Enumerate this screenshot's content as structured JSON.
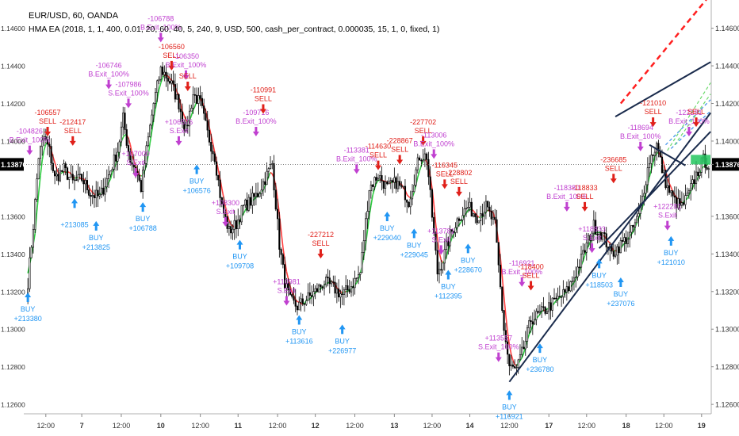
{
  "header": {
    "symbol_line": "EUR/USD, 60, OANDA",
    "strategy_line": "HMA EA (2018, 1, 1, 400, 0.01, 20, 60, 40, 5, 240, 9, USD, 500, cash_per_contract, 0.000035, 15, 1, 0, fixed, 1)"
  },
  "colors": {
    "bull": "#ffffff",
    "bear": "#000000",
    "hma_up": "#2ecc40",
    "hma_down": "#ff4040",
    "buy": "#2196f3",
    "sell": "#e0201a",
    "exit": "#c040d0",
    "trend": "#1a2b4c",
    "proj_red": "#ff2020",
    "proj_blue": "#3b8eea",
    "proj_green": "#6ad96a",
    "price_tag": "#000000"
  },
  "chart_data": {
    "type": "candlestick",
    "symbol": "EUR/USD",
    "timeframe": "60",
    "ylim": [
      1.1255,
      1.1475
    ],
    "y_ticks": [
      "1.14600",
      "1.14400",
      "1.14200",
      "1.14000",
      "1.13876",
      "1.13600",
      "1.13400",
      "1.13200",
      "1.13000",
      "1.12800",
      "1.12600"
    ],
    "y_tick_values": [
      1.146,
      1.144,
      1.142,
      1.14,
      1.13876,
      1.136,
      1.134,
      1.132,
      1.13,
      1.128,
      1.126
    ],
    "current_price": "1.13876",
    "current_price_value": 1.13876,
    "x_ticks": [
      "12:00",
      "7",
      "12:00",
      "10",
      "12:00",
      "11",
      "12:00",
      "12",
      "12:00",
      "13",
      "12:00",
      "14",
      "12:00",
      "17",
      "12:00",
      "18",
      "12:00",
      "19"
    ],
    "x_tick_index": [
      10,
      30,
      52,
      74,
      96,
      117,
      139,
      160,
      182,
      204,
      225,
      246,
      268,
      290,
      311,
      333,
      354,
      375
    ],
    "candle_count": 380,
    "path_anchors": [
      [
        0,
        1.1325
      ],
      [
        3,
        1.1355
      ],
      [
        6,
        1.1392
      ],
      [
        9,
        1.1402
      ],
      [
        12,
        1.1395
      ],
      [
        15,
        1.138
      ],
      [
        20,
        1.1385
      ],
      [
        25,
        1.1378
      ],
      [
        30,
        1.138
      ],
      [
        35,
        1.1372
      ],
      [
        40,
        1.137
      ],
      [
        45,
        1.1382
      ],
      [
        50,
        1.1395
      ],
      [
        53,
        1.1412
      ],
      [
        55,
        1.14
      ],
      [
        57,
        1.139
      ],
      [
        60,
        1.1385
      ],
      [
        63,
        1.1375
      ],
      [
        66,
        1.1395
      ],
      [
        70,
        1.142
      ],
      [
        74,
        1.1438
      ],
      [
        76,
        1.1436
      ],
      [
        80,
        1.143
      ],
      [
        84,
        1.142
      ],
      [
        88,
        1.1405
      ],
      [
        92,
        1.1425
      ],
      [
        96,
        1.142
      ],
      [
        100,
        1.1404
      ],
      [
        104,
        1.1392
      ],
      [
        108,
        1.1365
      ],
      [
        112,
        1.1352
      ],
      [
        116,
        1.1356
      ],
      [
        120,
        1.1365
      ],
      [
        124,
        1.1368
      ],
      [
        128,
        1.1372
      ],
      [
        132,
        1.138
      ],
      [
        136,
        1.1388
      ],
      [
        140,
        1.1345
      ],
      [
        143,
        1.1325
      ],
      [
        146,
        1.1315
      ],
      [
        150,
        1.1312
      ],
      [
        154,
        1.1315
      ],
      [
        160,
        1.132
      ],
      [
        165,
        1.1325
      ],
      [
        170,
        1.1322
      ],
      [
        175,
        1.1318
      ],
      [
        180,
        1.1323
      ],
      [
        185,
        1.133
      ],
      [
        190,
        1.1375
      ],
      [
        195,
        1.1382
      ],
      [
        200,
        1.1375
      ],
      [
        205,
        1.1378
      ],
      [
        210,
        1.1372
      ],
      [
        212,
        1.1368
      ],
      [
        215,
        1.138
      ],
      [
        218,
        1.1392
      ],
      [
        222,
        1.1392
      ],
      [
        225,
        1.136
      ],
      [
        228,
        1.133
      ],
      [
        231,
        1.1337
      ],
      [
        235,
        1.135
      ],
      [
        240,
        1.136
      ],
      [
        245,
        1.1365
      ],
      [
        250,
        1.136
      ],
      [
        255,
        1.1365
      ],
      [
        260,
        1.1355
      ],
      [
        265,
        1.13
      ],
      [
        268,
        1.128
      ],
      [
        272,
        1.1278
      ],
      [
        276,
        1.129
      ],
      [
        280,
        1.1305
      ],
      [
        285,
        1.1308
      ],
      [
        290,
        1.1312
      ],
      [
        295,
        1.1316
      ],
      [
        300,
        1.132
      ],
      [
        305,
        1.133
      ],
      [
        310,
        1.1342
      ],
      [
        315,
        1.1355
      ],
      [
        320,
        1.135
      ],
      [
        325,
        1.134
      ],
      [
        330,
        1.1345
      ],
      [
        335,
        1.135
      ],
      [
        340,
        1.136
      ],
      [
        343,
        1.1375
      ],
      [
        346,
        1.139
      ],
      [
        350,
        1.1398
      ],
      [
        353,
        1.1385
      ],
      [
        356,
        1.1375
      ],
      [
        360,
        1.1368
      ],
      [
        364,
        1.1365
      ],
      [
        368,
        1.1372
      ],
      [
        372,
        1.1382
      ],
      [
        376,
        1.139
      ],
      [
        379,
        1.1387
      ]
    ],
    "trendlines": [
      {
        "color": "trend",
        "from": [
          268,
          1.1272
        ],
        "to": [
          380,
          1.1415
        ]
      },
      {
        "color": "trend",
        "from": [
          318,
          1.1343
        ],
        "to": [
          380,
          1.1405
        ]
      },
      {
        "color": "trend",
        "from": [
          327,
          1.1413
        ],
        "to": [
          380,
          1.1442
        ]
      },
      {
        "color": "trend",
        "from": [
          346,
          1.1398
        ],
        "to": [
          366,
          1.1387
        ]
      }
    ],
    "projection_lines": [
      {
        "color": "proj_red",
        "from": [
          330,
          1.142
        ],
        "to": [
          380,
          1.1478
        ],
        "dashed": true
      },
      {
        "color": "proj_blue",
        "from": [
          355,
          1.1398
        ],
        "to": [
          380,
          1.1422
        ],
        "dashed": true
      },
      {
        "color": "proj_blue",
        "from": [
          358,
          1.1396
        ],
        "to": [
          380,
          1.1416
        ],
        "dashed": true
      },
      {
        "color": "proj_green",
        "from": [
          356,
          1.1395
        ],
        "to": [
          380,
          1.1431
        ],
        "dashed": true
      },
      {
        "color": "proj_green",
        "from": [
          360,
          1.1398
        ],
        "to": [
          380,
          1.1425
        ],
        "dashed": true
      }
    ],
    "signals": [
      {
        "i": 0,
        "type": "buy",
        "label": "BUY",
        "value": "+213380",
        "price": 1.1322
      },
      {
        "i": 1,
        "type": "exit",
        "label": "B.Exit_100%",
        "value": "-104826",
        "price": 1.139
      },
      {
        "i": 11,
        "type": "sell",
        "label": "SELL",
        "value": "-106557",
        "price": 1.14
      },
      {
        "i": 25,
        "type": "sell",
        "label": "SELL",
        "value": "-212417",
        "price": 1.1395
      },
      {
        "i": 26,
        "type": "buy",
        "label": "",
        "value": "+213085",
        "price": 1.1372
      },
      {
        "i": 38,
        "type": "buy",
        "label": "BUY",
        "value": "+213825",
        "price": 1.136
      },
      {
        "i": 45,
        "type": "exit",
        "label": "B.Exit_100%",
        "value": "-106746",
        "price": 1.1425
      },
      {
        "i": 56,
        "type": "exit",
        "label": "S.Exit_100%",
        "value": "-107986",
        "price": 1.1415
      },
      {
        "i": 60,
        "type": "exit",
        "label": "S.Exit",
        "value": "+107000",
        "price": 1.1378
      },
      {
        "i": 64,
        "type": "buy",
        "label": "BUY",
        "value": "+106788",
        "price": 1.137
      },
      {
        "i": 74,
        "type": "exit",
        "label": "B.Exit_100%",
        "value": "-106788",
        "price": 1.145
      },
      {
        "i": 80,
        "type": "sell",
        "label": "SELL",
        "value": "-106560",
        "price": 1.1435
      },
      {
        "i": 84,
        "type": "exit",
        "label": "S.Exit",
        "value": "+106576",
        "price": 1.1395
      },
      {
        "i": 88,
        "type": "exit",
        "label": "B.Exit_100%",
        "value": "-106350",
        "price": 1.143
      },
      {
        "i": 89,
        "type": "sell",
        "label": "SELL",
        "value": "",
        "price": 1.1424
      },
      {
        "i": 94,
        "type": "buy",
        "label": "BUY",
        "value": "+106576",
        "price": 1.139
      },
      {
        "i": 110,
        "type": "exit",
        "label": "S.Exit",
        "value": "+108300",
        "price": 1.1352
      },
      {
        "i": 118,
        "type": "buy",
        "label": "BUY",
        "value": "+109708",
        "price": 1.135
      },
      {
        "i": 127,
        "type": "exit",
        "label": "B.Exit_100%",
        "value": "-109716",
        "price": 1.14
      },
      {
        "i": 131,
        "type": "sell",
        "label": "SELL",
        "value": "-110991",
        "price": 1.1412
      },
      {
        "i": 144,
        "type": "exit",
        "label": "S.Exit",
        "value": "+110981",
        "price": 1.131
      },
      {
        "i": 151,
        "type": "buy",
        "label": "BUY",
        "value": "+113616",
        "price": 1.131
      },
      {
        "i": 163,
        "type": "sell",
        "label": "SELL",
        "value": "-227212",
        "price": 1.1335
      },
      {
        "i": 175,
        "type": "buy",
        "label": "BUY",
        "value": "+226977",
        "price": 1.1305
      },
      {
        "i": 183,
        "type": "exit",
        "label": "B.Exit_100%",
        "value": "-113381",
        "price": 1.138
      },
      {
        "i": 195,
        "type": "sell",
        "label": "SELL",
        "value": "-114630",
        "price": 1.1382
      },
      {
        "i": 200,
        "type": "buy",
        "label": "BUY",
        "value": "+229040",
        "price": 1.1365
      },
      {
        "i": 207,
        "type": "sell",
        "label": "SELL",
        "value": "-228867",
        "price": 1.1385
      },
      {
        "i": 215,
        "type": "buy",
        "label": "BUY",
        "value": "+229045",
        "price": 1.1356
      },
      {
        "i": 220,
        "type": "sell",
        "label": "SELL",
        "value": "-227702",
        "price": 1.1395
      },
      {
        "i": 226,
        "type": "exit",
        "label": "B.Exit_100%",
        "value": "-113006",
        "price": 1.1388
      },
      {
        "i": 230,
        "type": "exit",
        "label": "S.Exit",
        "value": "+113781",
        "price": 1.1337
      },
      {
        "i": 232,
        "type": "sell",
        "label": "SELL",
        "value": "-116345",
        "price": 1.1372
      },
      {
        "i": 234,
        "type": "buy",
        "label": "BUY",
        "value": "+112395",
        "price": 1.1334
      },
      {
        "i": 240,
        "type": "sell",
        "label": "SELL",
        "value": "-228802",
        "price": 1.1368
      },
      {
        "i": 245,
        "type": "buy",
        "label": "BUY",
        "value": "+228670",
        "price": 1.1348
      },
      {
        "i": 262,
        "type": "exit",
        "label": "S.Exit_100%",
        "value": "+113557",
        "price": 1.128
      },
      {
        "i": 268,
        "type": "buy",
        "label": "BUY",
        "value": "+116921",
        "price": 1.127
      },
      {
        "i": 275,
        "type": "exit",
        "label": "B.Exit_100%",
        "value": "-116921",
        "price": 1.132
      },
      {
        "i": 280,
        "type": "sell",
        "label": "SELL",
        "value": "-118400",
        "price": 1.1318
      },
      {
        "i": 285,
        "type": "buy",
        "label": "BUY",
        "value": "+236780",
        "price": 1.1295
      },
      {
        "i": 300,
        "type": "exit",
        "label": "B.Exit_100%",
        "value": "-118380",
        "price": 1.136
      },
      {
        "i": 310,
        "type": "sell",
        "label": "SELL",
        "value": "-118833",
        "price": 1.136
      },
      {
        "i": 314,
        "type": "exit",
        "label": "S.Exit",
        "value": "+118833",
        "price": 1.1338
      },
      {
        "i": 318,
        "type": "buy",
        "label": "BUY",
        "value": "+118503",
        "price": 1.134
      },
      {
        "i": 326,
        "type": "sell",
        "label": "SELL",
        "value": "-236685",
        "price": 1.1375
      },
      {
        "i": 330,
        "type": "buy",
        "label": "BUY",
        "value": "+237076",
        "price": 1.133
      },
      {
        "i": 341,
        "type": "exit",
        "label": "B.Exit_100%",
        "value": "-118694",
        "price": 1.1392
      },
      {
        "i": 348,
        "type": "sell",
        "label": "SELL",
        "value": "-121010",
        "price": 1.1405
      },
      {
        "i": 356,
        "type": "exit",
        "label": "S.Exit",
        "value": "+122281",
        "price": 1.135
      },
      {
        "i": 358,
        "type": "buy",
        "label": "BUY",
        "value": "+121010",
        "price": 1.1352
      },
      {
        "i": 368,
        "type": "exit",
        "label": "B.Exit_100%",
        "value": "-122281",
        "price": 1.14
      },
      {
        "i": 372,
        "type": "sell",
        "label": "SELL",
        "value": "",
        "price": 1.1405
      }
    ]
  }
}
